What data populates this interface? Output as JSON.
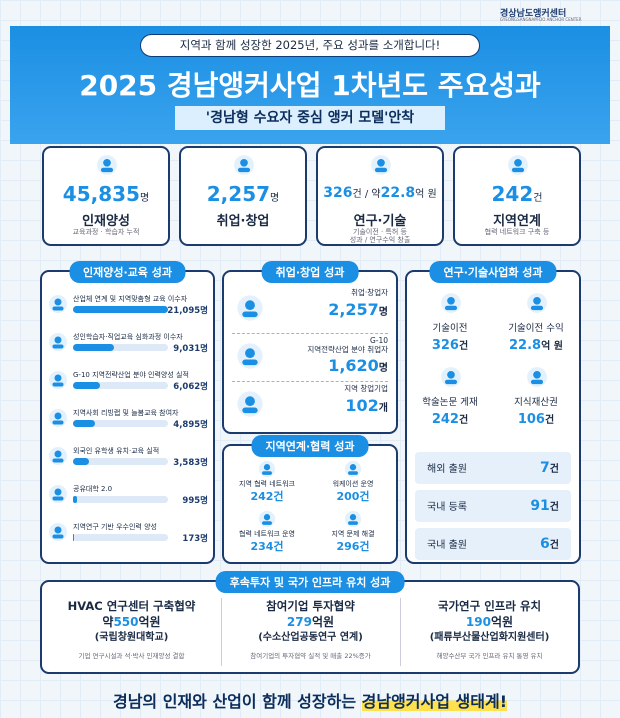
{
  "header": {
    "logo": "경상남도앵커센터",
    "logo_sub": "GYEONGSANGNAM-DO ANCHOR CENTER",
    "intro": "지역과 함께 성장한 2025년, 주요 성과를 소개합니다!",
    "title": "2025 경남앵커사업 1차년도 주요성과",
    "subtitle": "'경남형 수요자 중심 앵커 모델'안착"
  },
  "kpis": [
    {
      "number": "45,835",
      "unit": "명",
      "label": "인재양성",
      "desc": "교육과정 · 학습자 누적"
    },
    {
      "number": "2,257",
      "unit": "명",
      "label": "취업·창업"
    },
    {
      "number": "326",
      "unit": "건 / 약",
      "number2": "22.8",
      "unit2": "억 원",
      "label": "연구·기술",
      "desc": "기술이전 · 특허 등\n성과 / 연구수익 창출"
    },
    {
      "number": "242",
      "unit": "건",
      "label": "지역연계",
      "desc": "협력 네트워크 구축 등"
    }
  ],
  "education": {
    "title": "인재양성·교육 성과",
    "items": [
      {
        "label": "산업체 연계 및 지역맞춤형 교육 이수자",
        "value": 21095,
        "value_label": "21,095명"
      },
      {
        "label": "성인학습자·직업교육 심화과정 이수자",
        "value": 9031,
        "value_label": "9,031명"
      },
      {
        "label": "G-10 지역전략산업 분야 인력양성 실적",
        "value": 6062,
        "value_label": "6,062명"
      },
      {
        "label": "지역사회 리빙랩 및 늘봄교육 참여자",
        "value": 4895,
        "value_label": "4,895명"
      },
      {
        "label": "외국인 유학생 유치·교육 실적",
        "value": 3583,
        "value_label": "3,583명"
      },
      {
        "label": "공유대학 2.0",
        "value": 995,
        "value_label": "995명"
      },
      {
        "label": "지역연구 기반 우수인력 양성",
        "value": 173,
        "value_label": "173명"
      }
    ]
  },
  "employment": {
    "title": "취업·창업 성과",
    "items": [
      {
        "label": "취업·창업자",
        "value": "2,257",
        "unit": "명"
      },
      {
        "label": "G-10\n지역전략산업 분야 취업자",
        "value": "1,620",
        "unit": "명"
      },
      {
        "label": "지역 창업기업",
        "value": "102",
        "unit": "개"
      }
    ]
  },
  "regional": {
    "title": "지역연계·협력 성과",
    "items": [
      {
        "label": "지역 협력 네트워크",
        "value": "242",
        "unit": "건"
      },
      {
        "label": "워케이션 운영",
        "value": "200",
        "unit": "건"
      },
      {
        "label": "협력 네트워크 운영",
        "value": "234",
        "unit": "건"
      },
      {
        "label": "지역 문제 해결",
        "value": "296",
        "unit": "건"
      }
    ]
  },
  "research": {
    "title": "연구·기술사업화 성과",
    "items": [
      {
        "label": "기술이전",
        "value": "326",
        "unit": "건"
      },
      {
        "label": "기술이전 수익",
        "value": "22.8",
        "unit": "억 원"
      },
      {
        "label": "학술논문 게재",
        "value": "242",
        "unit": "건"
      },
      {
        "label": "지식재산권",
        "value": "106",
        "unit": "건"
      }
    ],
    "patents": [
      {
        "label": "해외 출원",
        "value": "7",
        "unit": "건"
      },
      {
        "label": "국내 등록",
        "value": "91",
        "unit": "건"
      },
      {
        "label": "국내 출원",
        "value": "6",
        "unit": "건"
      }
    ]
  },
  "investment": {
    "title": "후속투자 및 국가 인프라 유치 성과",
    "items": [
      {
        "title": "HVAC 연구센터 구축협약",
        "prefix": "약",
        "amount": "550",
        "unit": "억원",
        "org": "(국립창원대학교)",
        "desc": "기업 연구시설과 석·박사 인재양성 결합"
      },
      {
        "title": "참여기업 투자협약",
        "amount": "279",
        "unit": "억원",
        "org": "(수소산업공동연구 연계)",
        "desc": "참여기업의 투자협약 실적 및 매출 22%증가"
      },
      {
        "title": "국가연구 인프라 유치",
        "amount": "190",
        "unit": "억원",
        "org": "(패류부산물산업화지원센터)",
        "desc": "해양수산부 국가 인프라 유치 통영 유치"
      }
    ]
  },
  "footer": {
    "text": "경남의 인재와 산업이 함께 성장하는 ",
    "highlight": "경남앵커사업 생태계!"
  }
}
